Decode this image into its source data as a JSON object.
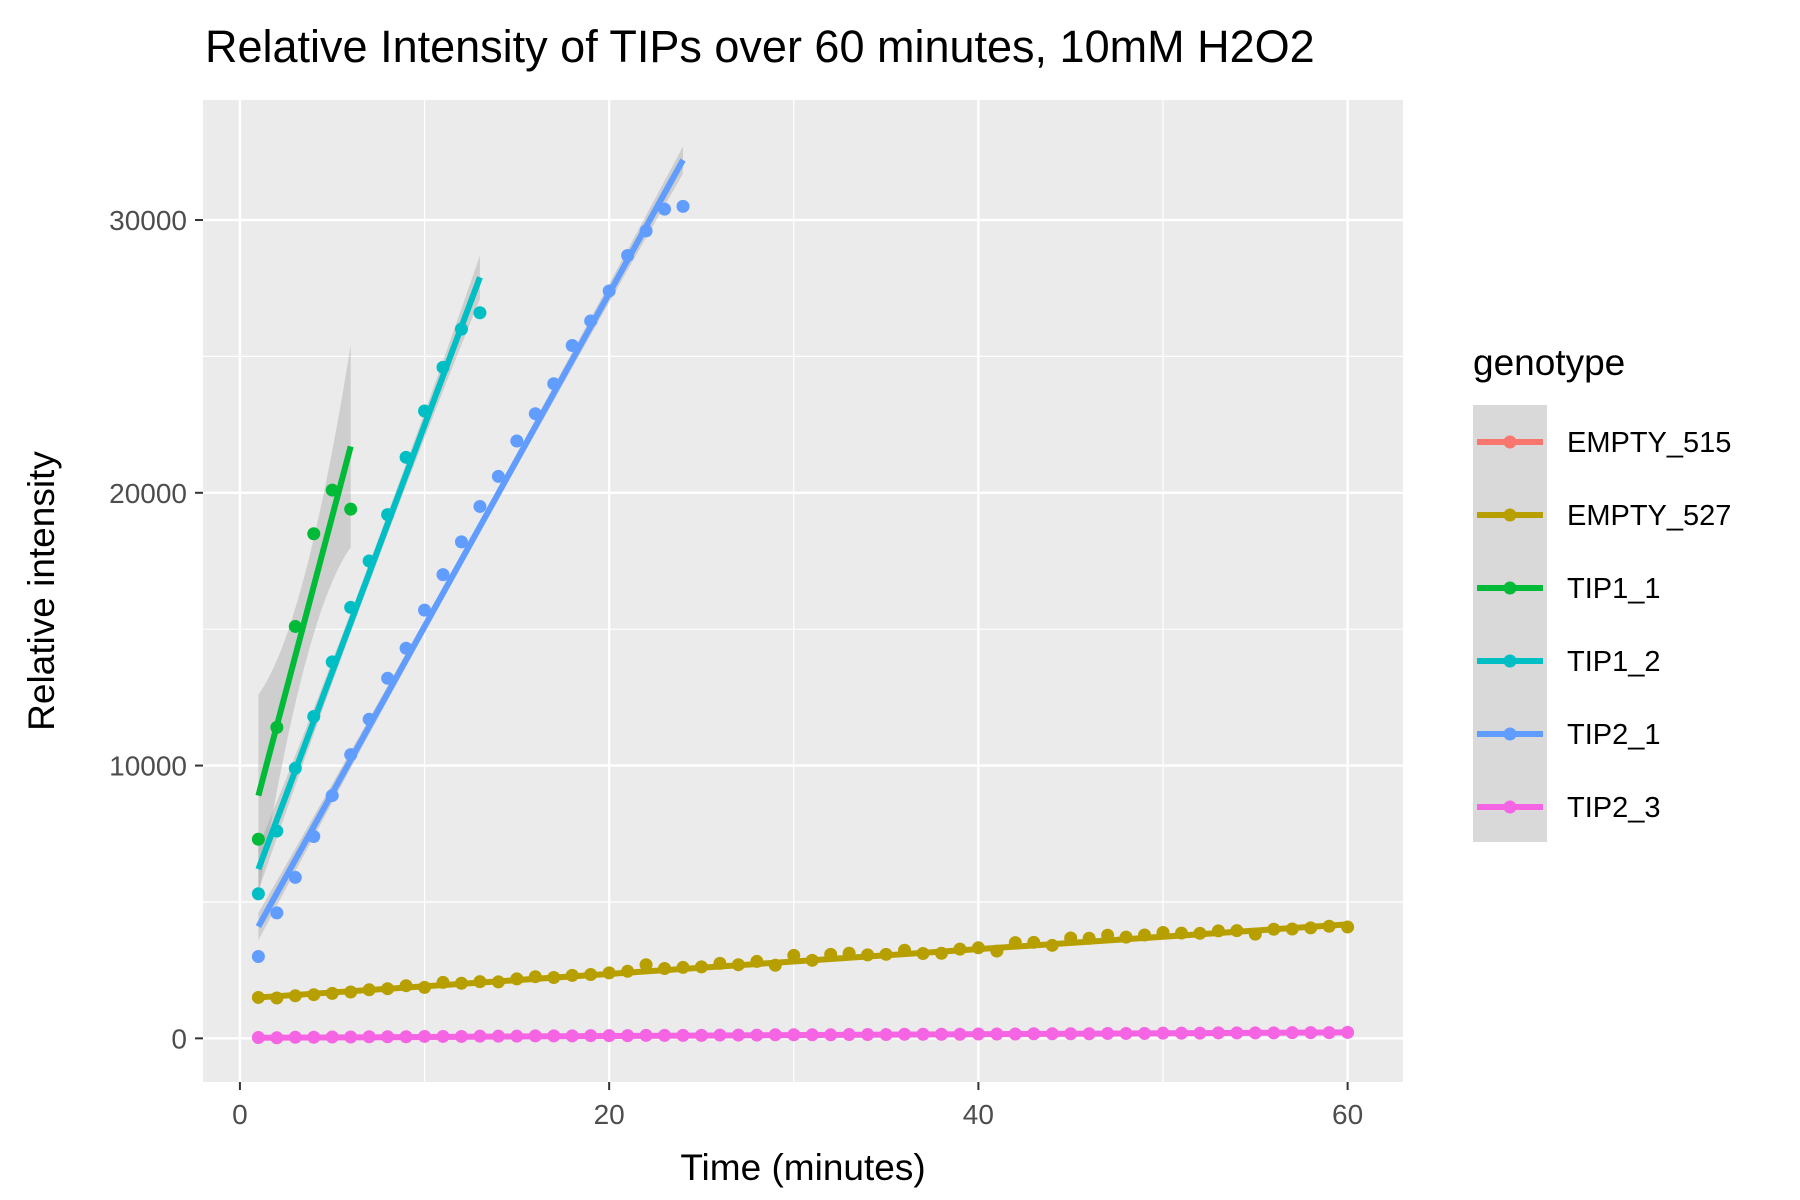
{
  "chart_data": {
    "type": "scatter",
    "title": "Relative Intensity of TIPs over 60 minutes, 10mM H2O2",
    "xlabel": "Time (minutes)",
    "ylabel": "Relative intensity",
    "xlim": [
      -2,
      63
    ],
    "ylim": [
      -1600,
      34400
    ],
    "x_ticks": [
      0,
      20,
      40,
      60
    ],
    "x_tick_labels": [
      "0",
      "20",
      "40",
      "60"
    ],
    "x_minor": [
      10,
      30,
      50
    ],
    "y_ticks": [
      0,
      10000,
      20000,
      30000
    ],
    "y_tick_labels": [
      "0",
      "10000",
      "20000",
      "30000"
    ],
    "y_minor": [
      5000,
      15000,
      25000
    ],
    "grid": true,
    "legend": {
      "title": "genotype",
      "position": "right"
    },
    "series": [
      {
        "name": "EMPTY_515",
        "color": "#F8766D",
        "x": [],
        "y": [],
        "fit": null
      },
      {
        "name": "EMPTY_527",
        "color": "#B79F00",
        "x": [
          1,
          2,
          3,
          4,
          5,
          6,
          7,
          8,
          9,
          10,
          11,
          12,
          13,
          14,
          15,
          16,
          17,
          18,
          19,
          20,
          21,
          22,
          23,
          24,
          25,
          26,
          27,
          28,
          29,
          30,
          31,
          32,
          33,
          34,
          35,
          36,
          37,
          38,
          39,
          40,
          41,
          42,
          43,
          44,
          45,
          46,
          47,
          48,
          49,
          50,
          51,
          52,
          53,
          54,
          55,
          56,
          57,
          58,
          59,
          60
        ],
        "y": [
          1500,
          1480,
          1560,
          1600,
          1650,
          1700,
          1780,
          1820,
          1930,
          1870,
          2050,
          2020,
          2080,
          2070,
          2180,
          2260,
          2230,
          2310,
          2340,
          2400,
          2460,
          2700,
          2560,
          2600,
          2620,
          2750,
          2700,
          2820,
          2680,
          3040,
          2860,
          3080,
          3120,
          3060,
          3080,
          3230,
          3110,
          3120,
          3270,
          3320,
          3200,
          3510,
          3520,
          3410,
          3680,
          3670,
          3780,
          3710,
          3790,
          3880,
          3860,
          3850,
          3940,
          3950,
          3820,
          4000,
          4010,
          4050,
          4110,
          4080
        ],
        "fit": {
          "x0": 1,
          "y0": 1500,
          "x1": 60,
          "y1": 4180,
          "se_half_width": 60
        }
      },
      {
        "name": "TIP1_1",
        "color": "#00BA38",
        "x": [
          1,
          2,
          3,
          4,
          5,
          6
        ],
        "y": [
          7300,
          11400,
          15100,
          18500,
          20100,
          19400
        ],
        "fit": {
          "x0": 1,
          "y0": 8900,
          "x1": 6,
          "y1": 21700,
          "se_half_width": 3700
        }
      },
      {
        "name": "TIP1_2",
        "color": "#00BFC4",
        "x": [
          1,
          2,
          3,
          4,
          5,
          6,
          7,
          8,
          9,
          10,
          11,
          12,
          13
        ],
        "y": [
          5300,
          7600,
          9900,
          11800,
          13800,
          15800,
          17500,
          19200,
          21300,
          23000,
          24600,
          26000,
          26600
        ],
        "fit": {
          "x0": 1,
          "y0": 6200,
          "x1": 13,
          "y1": 27900,
          "se_half_width": 800
        }
      },
      {
        "name": "TIP2_1",
        "color": "#619CFF",
        "x": [
          1,
          2,
          3,
          4,
          5,
          6,
          7,
          8,
          9,
          10,
          11,
          12,
          13,
          14,
          15,
          16,
          17,
          18,
          19,
          20,
          21,
          22,
          23,
          24
        ],
        "y": [
          3000,
          4600,
          5900,
          7400,
          8900,
          10400,
          11700,
          13200,
          14300,
          15700,
          17000,
          18200,
          19500,
          20600,
          21900,
          22900,
          24000,
          25400,
          26300,
          27400,
          28700,
          29600,
          30400,
          30500
        ],
        "fit": {
          "x0": 1,
          "y0": 4100,
          "x1": 24,
          "y1": 32200,
          "se_half_width": 500
        }
      },
      {
        "name": "TIP2_3",
        "color": "#F564E3",
        "x": [
          1,
          2,
          3,
          4,
          5,
          6,
          7,
          8,
          9,
          10,
          11,
          12,
          13,
          14,
          15,
          16,
          17,
          18,
          19,
          20,
          21,
          22,
          23,
          24,
          25,
          26,
          27,
          28,
          29,
          30,
          31,
          32,
          33,
          34,
          35,
          36,
          37,
          38,
          39,
          40,
          41,
          42,
          43,
          44,
          45,
          46,
          47,
          48,
          49,
          50,
          51,
          52,
          53,
          54,
          55,
          56,
          57,
          58,
          59,
          60
        ],
        "y": [
          30,
          20,
          40,
          40,
          50,
          50,
          60,
          60,
          60,
          70,
          70,
          70,
          80,
          80,
          80,
          90,
          90,
          90,
          100,
          100,
          100,
          110,
          110,
          110,
          110,
          120,
          120,
          120,
          130,
          130,
          130,
          130,
          140,
          140,
          140,
          150,
          150,
          150,
          150,
          160,
          160,
          160,
          170,
          170,
          170,
          170,
          180,
          180,
          180,
          190,
          190,
          190,
          200,
          200,
          200,
          200,
          210,
          210,
          210,
          220
        ],
        "fit": {
          "x0": 1,
          "y0": 20,
          "x1": 60,
          "y1": 220,
          "se_half_width": 40
        }
      }
    ]
  }
}
